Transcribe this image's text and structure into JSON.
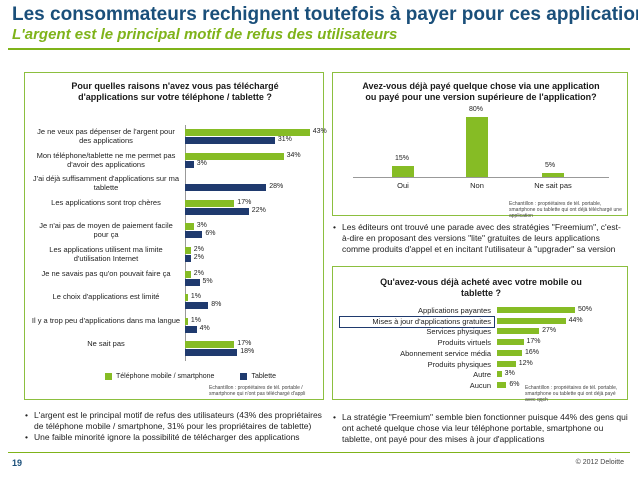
{
  "header": {
    "title": "Les consommateurs rechignent toutefois à payer pour ces applications",
    "subtitle": "L'argent est le principal motif de refus des utilisateurs"
  },
  "footer": {
    "page": "19",
    "copyright": "© 2012 Deloitte"
  },
  "colors": {
    "green": "#86bc25",
    "navy": "#1f3a6e",
    "title_blue": "#1a4f7a"
  },
  "left_panel": {
    "title": "Pour quelles raisons n'avez vous pas téléchargé d'applications sur votre téléphone / tablette ?",
    "legend": [
      "Téléphone mobile / smartphone",
      "Tablette"
    ],
    "note": "Echantillon : propriétaires de tél. portable / smartphone qui n'ont pas téléchargé d'appli",
    "bullets": [
      "L'argent est le principal motif de refus des utilisateurs (43% des propriétaires de téléphone mobile / smartphone, 31% pour les propriétaires de tablette)",
      "Une faible minorité ignore la possibilité de télécharger des applications"
    ]
  },
  "top_right_panel": {
    "title": "Avez-vous déjà payé quelque chose via une application ou payé pour une version supérieure de l'application?",
    "note": "Echantillon : propriétaires de tél. portable, smartphone ou tablette qui ont déjà téléchargé une application",
    "bullets": [
      "Les éditeurs ont trouvé une parade avec des stratégies \"Freemium\", c'est-à-dire en proposant des versions \"lite\" gratuites de leurs applications comme produits d'appel et en incitant l'utilisateur à \"upgrader\" sa version"
    ]
  },
  "bottom_right_panel": {
    "title": "Qu'avez-vous déjà acheté avec votre mobile ou tablette ?",
    "note": "Echantillon : propriétaires de tél. portable, smartphone ou tablette qui ont déjà payé avec qqch",
    "bullets": [
      "La stratégie \"Freemium\" semble bien fonctionner puisque 44% des gens qui ont acheté quelque chose via leur téléphone portable, smartphone ou tablette, ont payé pour des mises à jour d'applications"
    ]
  },
  "chart_data": [
    {
      "type": "bar",
      "orientation": "horizontal",
      "title": "Pour quelles raisons n'avez vous pas téléchargé d'applications sur votre téléphone / tablette ?",
      "categories": [
        "Je ne veux pas dépenser de l'argent pour des applications",
        "Mon téléphone/tablette ne me permet pas d'avoir des applications",
        "J'ai déjà suffisamment d'applications sur ma tablette",
        "Les applications sont trop chères",
        "Je n'ai pas de moyen de paiement facile pour ça",
        "Les applications utilisent ma limite d'utilisation Internet",
        "Je ne savais pas qu'on pouvait faire ça",
        "Le choix d'applications est limité",
        "Il y a trop peu d'applications dans ma langue",
        "Ne sait pas"
      ],
      "series": [
        {
          "name": "Téléphone mobile / smartphone",
          "values": [
            43,
            34,
            null,
            17,
            3,
            2,
            2,
            1,
            1,
            17
          ]
        },
        {
          "name": "Tablette",
          "values": [
            31,
            3,
            28,
            22,
            6,
            2,
            5,
            8,
            4,
            18
          ]
        }
      ],
      "legend": "bottom"
    },
    {
      "type": "bar",
      "orientation": "vertical",
      "title": "Avez-vous déjà payé quelque chose via une application ou payé pour une version supérieure de l'application?",
      "categories": [
        "Oui",
        "Non",
        "Ne sait pas"
      ],
      "values": [
        15,
        80,
        5
      ]
    },
    {
      "type": "bar",
      "orientation": "horizontal",
      "title": "Qu'avez-vous déjà acheté avec votre mobile ou tablette ?",
      "categories": [
        "Applications payantes",
        "Mises à jour d'applications gratuites",
        "Services physiques",
        "Produits virtuels",
        "Abonnement service média",
        "Produits physiques",
        "Autre",
        "Aucun"
      ],
      "values": [
        50,
        44,
        27,
        17,
        16,
        12,
        3,
        6
      ]
    }
  ]
}
